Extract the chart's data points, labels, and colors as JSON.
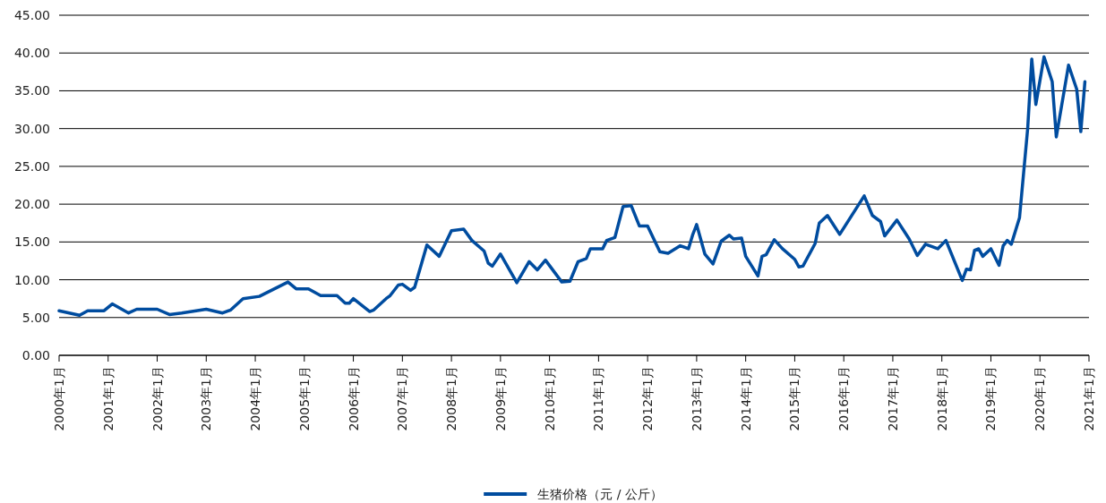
{
  "chart_data": {
    "type": "line",
    "legend": "bottom",
    "grid": "y",
    "marker": "none",
    "line_style": "solid",
    "xlim": [
      "2000-01",
      "2021-01"
    ],
    "ylim": [
      0,
      45
    ],
    "yticks": [
      {
        "value": 0,
        "label": "0.00"
      },
      {
        "value": 5,
        "label": "5.00"
      },
      {
        "value": 10,
        "label": "10.00"
      },
      {
        "value": 15,
        "label": "15.00"
      },
      {
        "value": 20,
        "label": "20.00"
      },
      {
        "value": 25,
        "label": "25.00"
      },
      {
        "value": 30,
        "label": "30.00"
      },
      {
        "value": 35,
        "label": "35.00"
      },
      {
        "value": 40,
        "label": "40.00"
      },
      {
        "value": 45,
        "label": "45.00"
      }
    ],
    "xticks": [
      {
        "value": "2000-01",
        "label": "2000年1月"
      },
      {
        "value": "2001-01",
        "label": "2001年1月"
      },
      {
        "value": "2002-01",
        "label": "2002年1月"
      },
      {
        "value": "2003-01",
        "label": "2003年1月"
      },
      {
        "value": "2004-01",
        "label": "2004年1月"
      },
      {
        "value": "2005-01",
        "label": "2005年1月"
      },
      {
        "value": "2006-01",
        "label": "2006年1月"
      },
      {
        "value": "2007-01",
        "label": "2007年1月"
      },
      {
        "value": "2008-01",
        "label": "2008年1月"
      },
      {
        "value": "2009-01",
        "label": "2009年1月"
      },
      {
        "value": "2010-01",
        "label": "2010年1月"
      },
      {
        "value": "2011-01",
        "label": "2011年1月"
      },
      {
        "value": "2012-01",
        "label": "2012年1月"
      },
      {
        "value": "2013-01",
        "label": "2013年1月"
      },
      {
        "value": "2014-01",
        "label": "2014年1月"
      },
      {
        "value": "2015-01",
        "label": "2015年1月"
      },
      {
        "value": "2016-01",
        "label": "2016年1月"
      },
      {
        "value": "2017-01",
        "label": "2017年1月"
      },
      {
        "value": "2018-01",
        "label": "2018年1月"
      },
      {
        "value": "2019-01",
        "label": "2019年1月"
      },
      {
        "value": "2020-01",
        "label": "2020年1月"
      },
      {
        "value": "2021-01",
        "label": "2021年1月"
      }
    ],
    "x": [
      "2000-01",
      "2000-06",
      "2000-08",
      "2000-12",
      "2001-02",
      "2001-06",
      "2001-08",
      "2002-01",
      "2002-04",
      "2002-07",
      "2003-01",
      "2003-05",
      "2003-07",
      "2003-10",
      "2004-02",
      "2004-09",
      "2004-11",
      "2005-02",
      "2005-05",
      "2005-09",
      "2005-11",
      "2005-12",
      "2006-01",
      "2006-05",
      "2006-06",
      "2006-09",
      "2006-10",
      "2006-12",
      "2007-01",
      "2007-03",
      "2007-04",
      "2007-07",
      "2007-10",
      "2008-01",
      "2008-04",
      "2008-06",
      "2008-09",
      "2008-10",
      "2008-11",
      "2009-01",
      "2009-05",
      "2009-08",
      "2009-10",
      "2009-12",
      "2010-04",
      "2010-06",
      "2010-08",
      "2010-10",
      "2010-11",
      "2011-02",
      "2011-03",
      "2011-05",
      "2011-07",
      "2011-09",
      "2011-11",
      "2012-01",
      "2012-04",
      "2012-06",
      "2012-09",
      "2012-11",
      "2012-12",
      "2013-01",
      "2013-03",
      "2013-05",
      "2013-07",
      "2013-09",
      "2013-10",
      "2013-12",
      "2014-01",
      "2014-04",
      "2014-05",
      "2014-06",
      "2014-08",
      "2014-10",
      "2015-01",
      "2015-02",
      "2015-03",
      "2015-06",
      "2015-07",
      "2015-09",
      "2015-12",
      "2016-06",
      "2016-08",
      "2016-10",
      "2016-11",
      "2017-02",
      "2017-05",
      "2017-07",
      "2017-09",
      "2017-12",
      "2018-02",
      "2018-06",
      "2018-07",
      "2018-08",
      "2018-09",
      "2018-10",
      "2018-11",
      "2019-01",
      "2019-03",
      "2019-04",
      "2019-05",
      "2019-06",
      "2019-08",
      "2019-10",
      "2019-11",
      "2019-12",
      "2020-02",
      "2020-04",
      "2020-05",
      "2020-08",
      "2020-10",
      "2020-11",
      "2020-12"
    ],
    "series": [
      {
        "name": "生猪价格（元 / 公斤）",
        "color": "#004c9f",
        "values": [
          5.9,
          5.3,
          5.9,
          5.9,
          6.8,
          5.6,
          6.1,
          6.1,
          5.4,
          5.6,
          6.1,
          5.6,
          6.0,
          7.5,
          7.8,
          9.7,
          8.8,
          8.8,
          7.9,
          7.9,
          6.9,
          6.9,
          7.5,
          5.8,
          6.0,
          7.5,
          7.9,
          9.3,
          9.4,
          8.6,
          9.0,
          14.6,
          13.1,
          16.5,
          16.7,
          15.2,
          13.8,
          12.2,
          11.8,
          13.4,
          9.6,
          12.4,
          11.3,
          12.6,
          9.7,
          9.8,
          12.4,
          12.8,
          14.1,
          14.1,
          15.2,
          15.6,
          19.7,
          19.8,
          17.1,
          17.1,
          13.7,
          13.5,
          14.5,
          14.1,
          15.9,
          17.3,
          13.4,
          12.1,
          15.1,
          15.9,
          15.4,
          15.5,
          13.1,
          10.5,
          13.1,
          13.3,
          15.3,
          14.1,
          12.7,
          11.7,
          11.8,
          14.8,
          17.5,
          18.5,
          16.0,
          21.1,
          18.5,
          17.7,
          15.8,
          17.9,
          15.4,
          13.2,
          14.7,
          14.1,
          15.2,
          9.9,
          11.4,
          11.3,
          13.9,
          14.1,
          13.1,
          14.1,
          11.9,
          14.5,
          15.2,
          14.7,
          18.2,
          30.0,
          39.2,
          33.2,
          39.5,
          36.2,
          28.9,
          38.4,
          35.2,
          29.6,
          36.2
        ]
      }
    ]
  }
}
